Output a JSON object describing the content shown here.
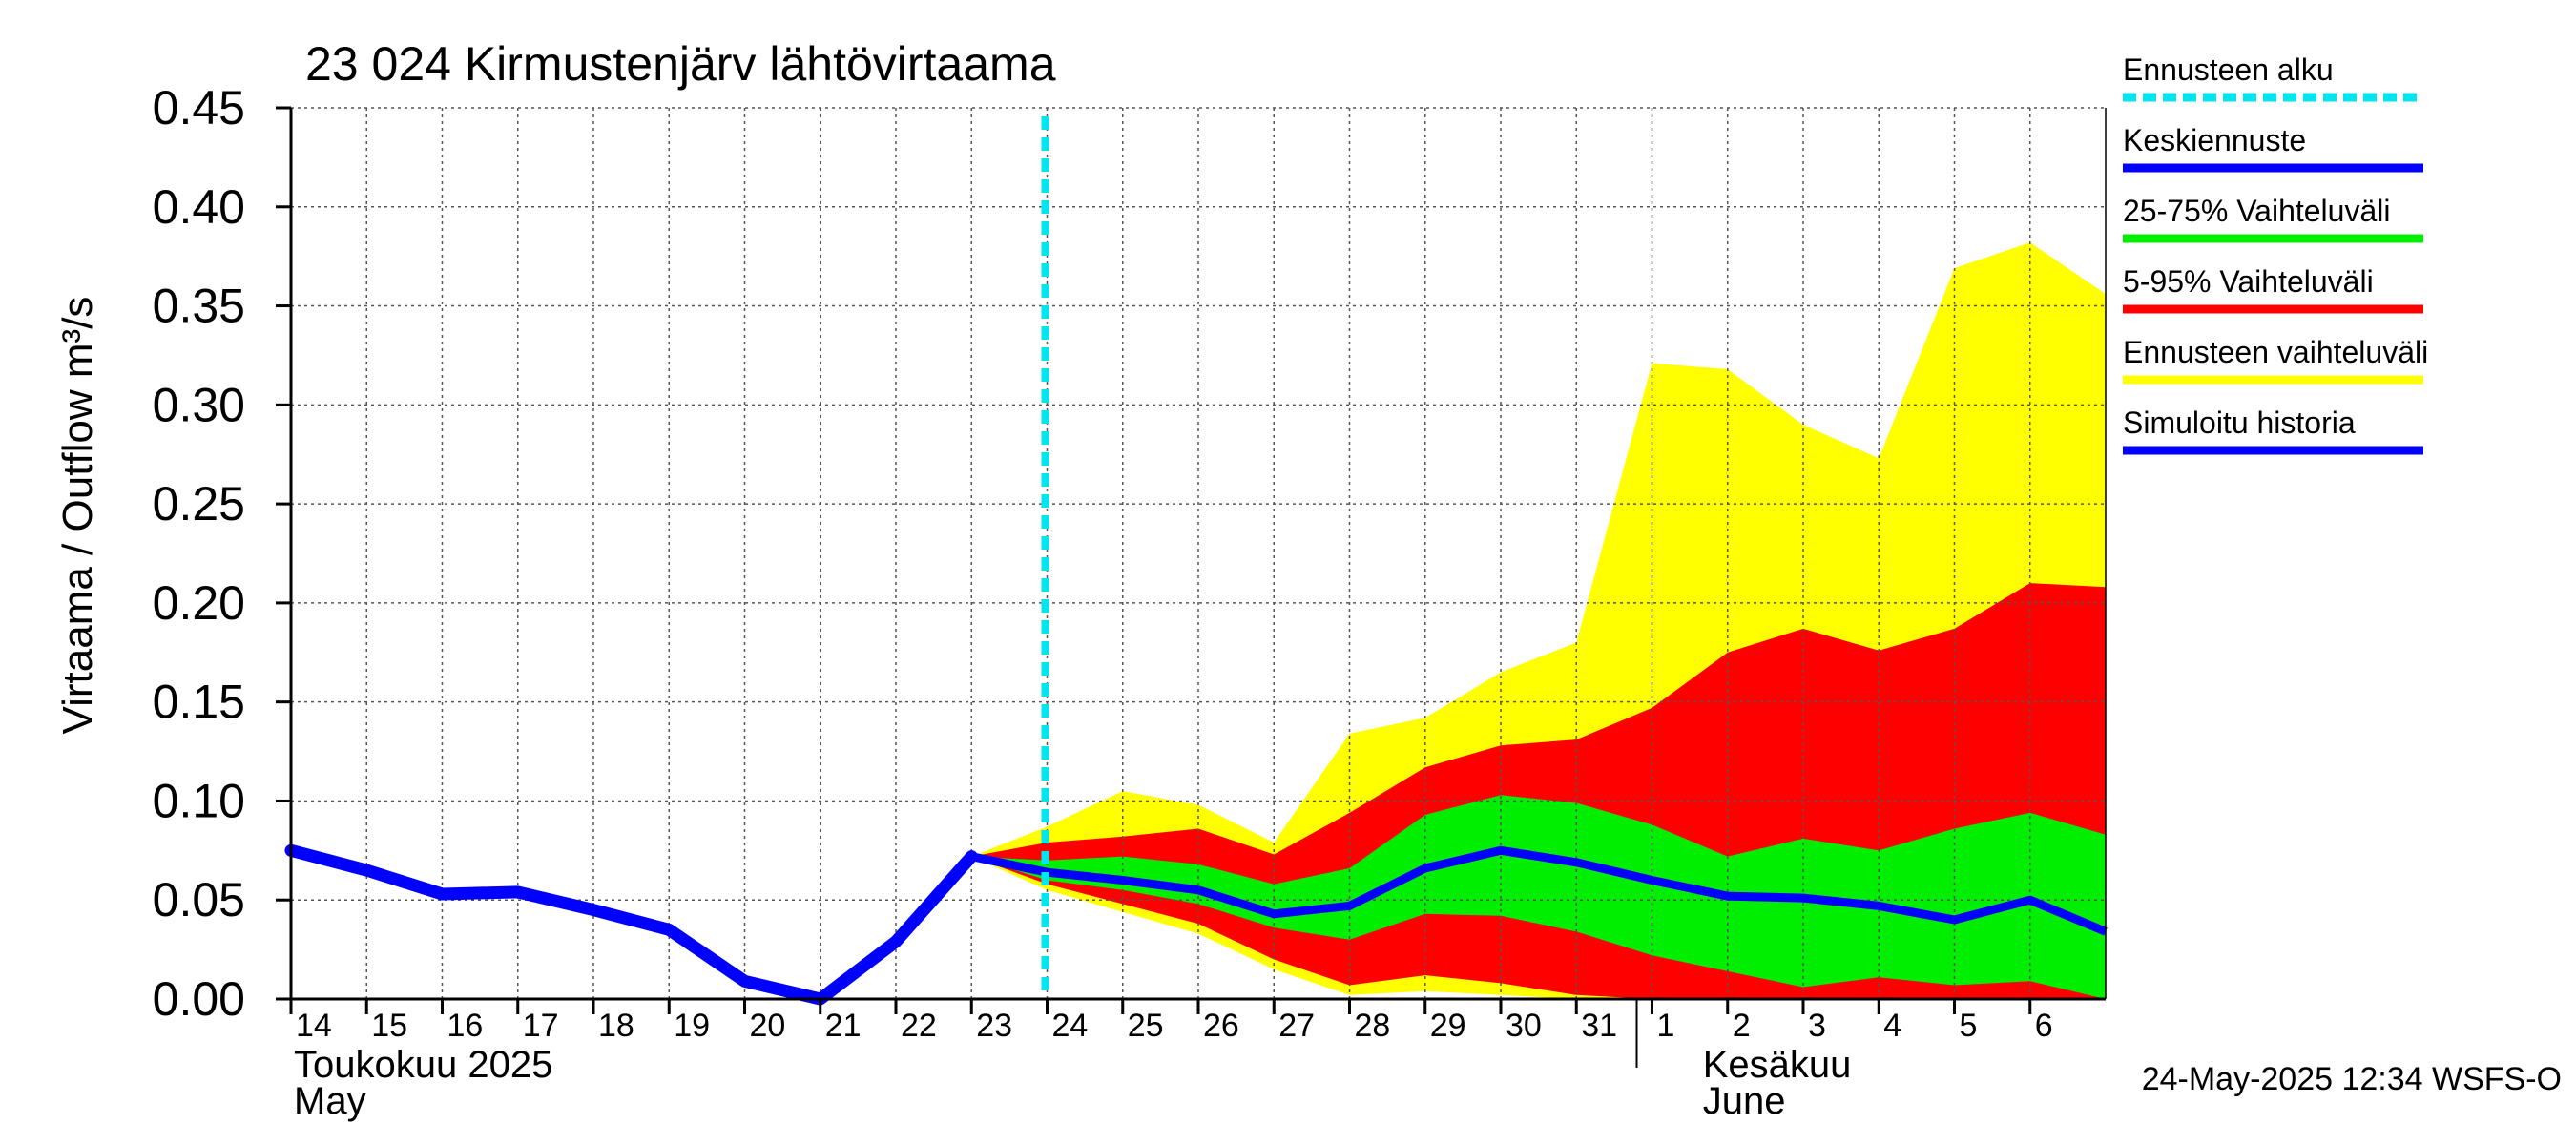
{
  "chart_data": {
    "type": "area",
    "title": "23 024 Kirmustenjärv lähtövirtaama",
    "ylabel": "Virtaama / Outflow   m³/s",
    "ylim": [
      0,
      0.45
    ],
    "yticks": [
      "0.00",
      "0.05",
      "0.10",
      "0.15",
      "0.20",
      "0.25",
      "0.30",
      "0.35",
      "0.40",
      "0.45"
    ],
    "x_days": [
      {
        "label": "14",
        "date": "2025-05-14"
      },
      {
        "label": "15",
        "date": "2025-05-15"
      },
      {
        "label": "16",
        "date": "2025-05-16"
      },
      {
        "label": "17",
        "date": "2025-05-17"
      },
      {
        "label": "18",
        "date": "2025-05-18"
      },
      {
        "label": "19",
        "date": "2025-05-19"
      },
      {
        "label": "20",
        "date": "2025-05-20"
      },
      {
        "label": "21",
        "date": "2025-05-21"
      },
      {
        "label": "22",
        "date": "2025-05-22"
      },
      {
        "label": "23",
        "date": "2025-05-23"
      },
      {
        "label": "24",
        "date": "2025-05-24"
      },
      {
        "label": "25",
        "date": "2025-05-25"
      },
      {
        "label": "26",
        "date": "2025-05-26"
      },
      {
        "label": "27",
        "date": "2025-05-27"
      },
      {
        "label": "28",
        "date": "2025-05-28"
      },
      {
        "label": "29",
        "date": "2025-05-29"
      },
      {
        "label": "30",
        "date": "2025-05-30"
      },
      {
        "label": "31",
        "date": "2025-05-31"
      },
      {
        "label": "1",
        "date": "2025-06-01"
      },
      {
        "label": "2",
        "date": "2025-06-02"
      },
      {
        "label": "3",
        "date": "2025-06-03"
      },
      {
        "label": "4",
        "date": "2025-06-04"
      },
      {
        "label": "5",
        "date": "2025-06-05"
      },
      {
        "label": "6",
        "date": "2025-06-06"
      }
    ],
    "x_range": [
      "2025-05-14",
      "2025-06-07"
    ],
    "month_labels": [
      {
        "fi": "Toukokuu  2025",
        "en": "May",
        "date": "2025-05-14"
      },
      {
        "fi": "Kesäkuu",
        "en": "June",
        "date": "2025-06-02"
      }
    ],
    "forecast_start": "2025-05-24",
    "legend": [
      {
        "key": "forecast_start",
        "label": "Ennusteen alku",
        "color": "#00e5ee",
        "style": "dashed"
      },
      {
        "key": "mean",
        "label": "Keskiennuste",
        "color": "#0000ff"
      },
      {
        "key": "p25_75",
        "label": "25-75% Vaihteluväli",
        "color": "#00ee00"
      },
      {
        "key": "p5_95",
        "label": "5-95% Vaihteluväli",
        "color": "#ff0000"
      },
      {
        "key": "range",
        "label": "Ennusteen vaihteluväli",
        "color": "#ffff00"
      },
      {
        "key": "history",
        "label": "Simuloitu historia",
        "color": "#0000ff"
      }
    ],
    "legend_position": "right",
    "grid": true,
    "series": {
      "history": {
        "x": [
          "2025-05-14",
          "2025-05-15",
          "2025-05-16",
          "2025-05-17",
          "2025-05-18",
          "2025-05-19",
          "2025-05-20",
          "2025-05-21",
          "2025-05-22",
          "2025-05-23"
        ],
        "y": [
          0.075,
          0.065,
          0.053,
          0.054,
          0.045,
          0.035,
          0.009,
          0.0,
          0.029,
          0.072
        ]
      },
      "forecast_x": [
        "2025-05-23",
        "2025-05-24",
        "2025-05-25",
        "2025-05-26",
        "2025-05-27",
        "2025-05-28",
        "2025-05-29",
        "2025-05-30",
        "2025-05-31",
        "2025-06-01",
        "2025-06-02",
        "2025-06-03",
        "2025-06-04",
        "2025-06-05",
        "2025-06-06",
        "2025-06-07"
      ],
      "mean": [
        0.072,
        0.064,
        0.06,
        0.055,
        0.043,
        0.047,
        0.066,
        0.075,
        0.069,
        0.06,
        0.052,
        0.051,
        0.047,
        0.04,
        0.05,
        0.034
      ],
      "p25": [
        0.072,
        0.06,
        0.055,
        0.048,
        0.036,
        0.03,
        0.043,
        0.042,
        0.034,
        0.022,
        0.014,
        0.006,
        0.011,
        0.007,
        0.009,
        0.0
      ],
      "p75": [
        0.072,
        0.07,
        0.072,
        0.068,
        0.058,
        0.066,
        0.093,
        0.103,
        0.099,
        0.088,
        0.072,
        0.081,
        0.075,
        0.086,
        0.094,
        0.083
      ],
      "p5": [
        0.072,
        0.058,
        0.048,
        0.038,
        0.02,
        0.007,
        0.012,
        0.008,
        0.002,
        0.0,
        0.0,
        0.0,
        0.0,
        0.0,
        0.0,
        0.0
      ],
      "p95": [
        0.072,
        0.079,
        0.082,
        0.086,
        0.073,
        0.094,
        0.117,
        0.128,
        0.131,
        0.147,
        0.175,
        0.187,
        0.176,
        0.187,
        0.21,
        0.208
      ],
      "min": [
        0.072,
        0.055,
        0.044,
        0.033,
        0.015,
        0.002,
        0.004,
        0.002,
        0.0,
        0.0,
        0.0,
        0.0,
        0.0,
        0.0,
        0.0,
        0.0
      ],
      "max": [
        0.072,
        0.087,
        0.105,
        0.098,
        0.079,
        0.134,
        0.142,
        0.165,
        0.18,
        0.321,
        0.318,
        0.29,
        0.273,
        0.369,
        0.382,
        0.356
      ]
    }
  },
  "footer": {
    "timestamp": "24-May-2025 12:34 WSFS-O"
  }
}
